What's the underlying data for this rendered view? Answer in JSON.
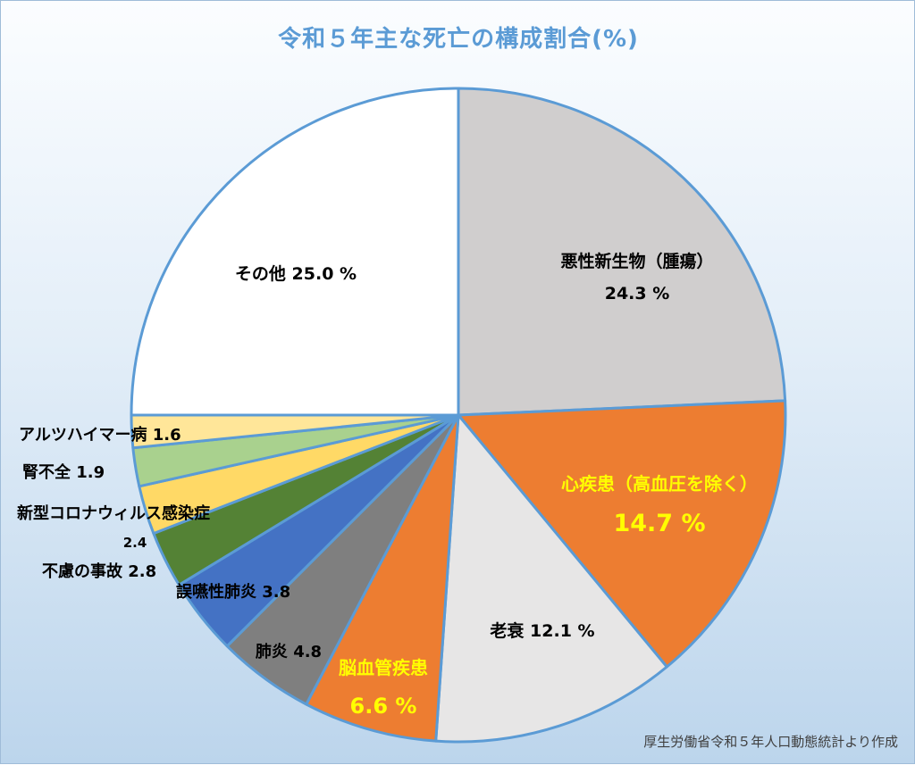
{
  "chart_data": {
    "type": "pie",
    "title": "令和５年主な死亡の構成割合(%)",
    "source": "厚生労働省令和５年人口動態統計より作成",
    "slices": [
      {
        "name": "悪性新生物（腫瘍）",
        "value": 24.3,
        "value_text": "24.3 %",
        "color": "#d0cece"
      },
      {
        "name": "心疾患（高血圧を除く）",
        "value": 14.7,
        "value_text": "14.7 %",
        "color": "#ed7d31"
      },
      {
        "name": "老衰",
        "value": 12.1,
        "value_text": "12.1 %",
        "color": "#e7e6e6"
      },
      {
        "name": "脳血管疾患",
        "value": 6.6,
        "value_text": "6.6 %",
        "color": "#ed7d31"
      },
      {
        "name": "肺炎",
        "value": 4.8,
        "value_text": "4.8",
        "color": "#7f7f7f"
      },
      {
        "name": "誤嚥性肺炎",
        "value": 3.8,
        "value_text": "3.8",
        "color": "#4472c4"
      },
      {
        "name": "不慮の事故",
        "value": 2.8,
        "value_text": "2.8",
        "color": "#548235"
      },
      {
        "name": "新型コロナウィルス感染症",
        "value": 2.4,
        "value_text": "2.4",
        "color": "#ffd966"
      },
      {
        "name": "腎不全",
        "value": 1.9,
        "value_text": "1.9",
        "color": "#a9d18e"
      },
      {
        "name": "アルツハイマー病",
        "value": 1.6,
        "value_text": "1.6",
        "color": "#ffe699"
      },
      {
        "name": "その他",
        "value": 25.0,
        "value_text": "25.0 %",
        "color": "#ffffff"
      }
    ],
    "slice_border_color": "#5b9bd5",
    "highlight_label_color": "#ffff00"
  }
}
